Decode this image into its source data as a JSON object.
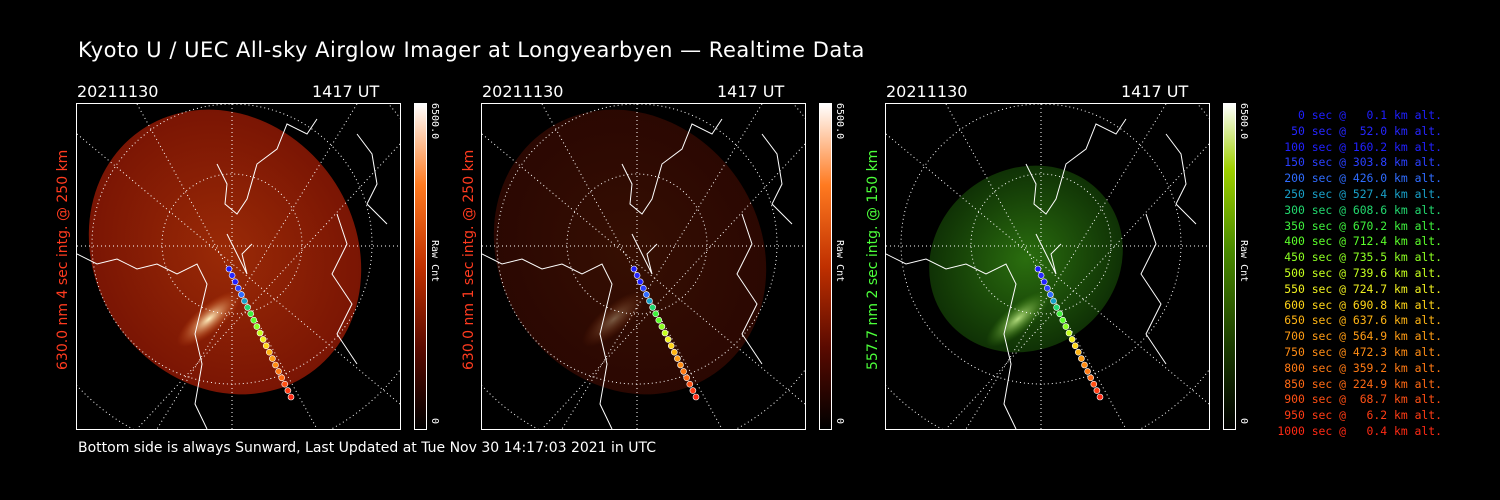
{
  "title": "Kyoto U / UEC All-sky Airglow Imager at Longyearbyen — Realtime Data",
  "footer": "Bottom side is always Sunward, Last Updated at Tue Nov 30 14:17:03 2021 in UTC",
  "panels": [
    {
      "date": "20211130",
      "time": "1417 UT",
      "side_label": "630.0 nm 4 sec intg. @ 250 km",
      "label_color": "#ff3b1f",
      "cbar_max": "6500.0",
      "cbar_min": "0",
      "cbar_unit": "Raw Cnt",
      "colormap": "red",
      "intensity": 1.0
    },
    {
      "date": "20211130",
      "time": "1417 UT",
      "side_label": "630.0 nm 1 sec intg. @ 250 km",
      "label_color": "#ff3b1f",
      "cbar_max": "6500.0",
      "cbar_min": "0",
      "cbar_unit": "Raw Cnt",
      "colormap": "red",
      "intensity": 0.35
    },
    {
      "date": "20211130",
      "time": "1417 UT",
      "side_label": "557.7 nm 2 sec intg. @ 150 km",
      "label_color": "#4cff3a",
      "cbar_max": "6500.0",
      "cbar_min": "0",
      "cbar_unit": "Raw Cnt",
      "colormap": "green",
      "intensity": 0.55
    }
  ],
  "legend": [
    {
      "text": "0 sec @   0.1 km alt.",
      "color": "#1e1eff"
    },
    {
      "text": "50 sec @  52.0 km alt.",
      "color": "#2626ff"
    },
    {
      "text": "100 sec @ 160.2 km alt.",
      "color": "#2020ff"
    },
    {
      "text": "150 sec @ 303.8 km alt.",
      "color": "#2a40ff"
    },
    {
      "text": "200 sec @ 426.0 km alt.",
      "color": "#2f6cff"
    },
    {
      "text": "250 sec @ 527.4 km alt.",
      "color": "#19a0c8"
    },
    {
      "text": "300 sec @ 608.6 km alt.",
      "color": "#22d86e"
    },
    {
      "text": "350 sec @ 670.2 km alt.",
      "color": "#3ef03c"
    },
    {
      "text": "400 sec @ 712.4 km alt.",
      "color": "#5cff2a"
    },
    {
      "text": "450 sec @ 735.5 km alt.",
      "color": "#8cff22"
    },
    {
      "text": "500 sec @ 739.6 km alt.",
      "color": "#c4ff1e"
    },
    {
      "text": "550 sec @ 724.7 km alt.",
      "color": "#f0f020"
    },
    {
      "text": "600 sec @ 690.8 km alt.",
      "color": "#ffd418"
    },
    {
      "text": "650 sec @ 637.6 km alt.",
      "color": "#ffb414"
    },
    {
      "text": "700 sec @ 564.9 km alt.",
      "color": "#ff9c14"
    },
    {
      "text": "750 sec @ 472.3 km alt.",
      "color": "#ff8c14"
    },
    {
      "text": "800 sec @ 359.2 km alt.",
      "color": "#ff7a14"
    },
    {
      "text": "850 sec @ 224.9 km alt.",
      "color": "#ff6a14"
    },
    {
      "text": "900 sec @  68.7 km alt.",
      "color": "#ff5014"
    },
    {
      "text": "950 sec @   6.2 km alt.",
      "color": "#ff3c14"
    },
    {
      "text": "1000 sec @   0.4 km alt.",
      "color": "#ff2a14"
    }
  ]
}
